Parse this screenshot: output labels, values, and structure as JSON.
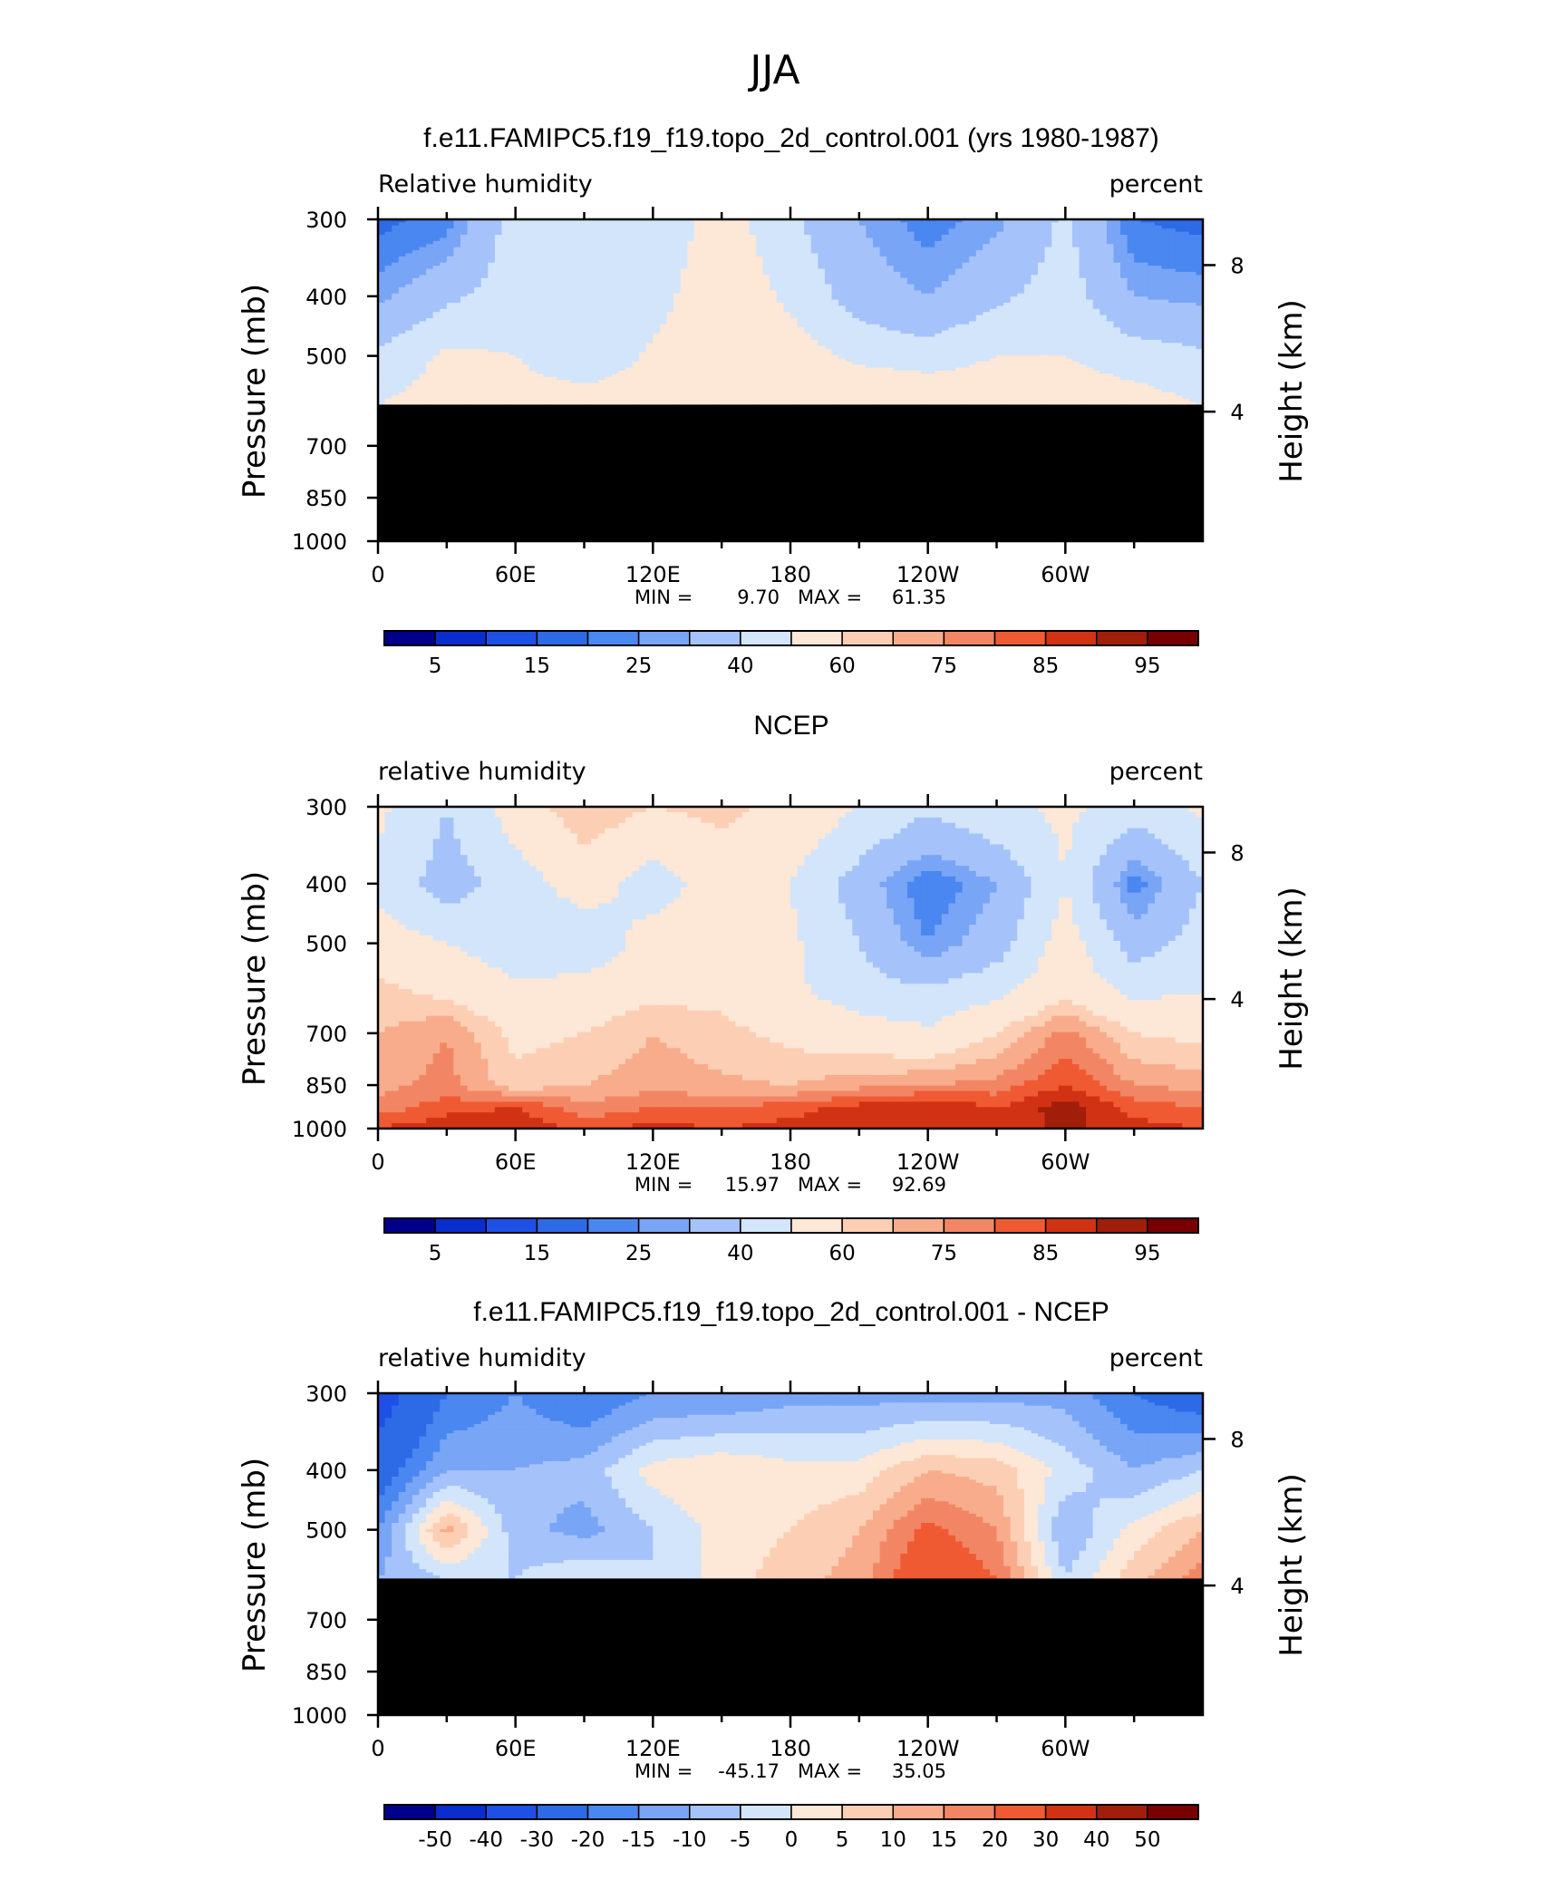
{
  "figure": {
    "supertitle": "JJA"
  },
  "colors": {
    "rh_palette": [
      "#00008b",
      "#0a2dcd",
      "#1e50e6",
      "#2d6be6",
      "#4b87f0",
      "#78a5f5",
      "#a5c3fa",
      "#d2e5fa",
      "#fde7d6",
      "#fccfb4",
      "#f8ac8c",
      "#f28664",
      "#f05a32",
      "#d23214",
      "#a01e0a",
      "#780000"
    ],
    "diff_palette": [
      "#00008b",
      "#0a2dcd",
      "#1e50e6",
      "#2d6be6",
      "#4b87f0",
      "#78a5f5",
      "#a5c3fa",
      "#d2e5fa",
      "#fde7d6",
      "#fccfb4",
      "#f8ac8c",
      "#f28664",
      "#f05a32",
      "#d23214",
      "#a01e0a",
      "#780000"
    ],
    "below_ground": "#000000"
  },
  "chart_data": [
    {
      "type": "heatmap",
      "title": "f.e11.FAMIPC5.f19_f19.topo_2d_control.001 (yrs 1980-1987)",
      "left_label": "Relative humidity",
      "right_label": "percent",
      "ylabel": "Pressure (mb)",
      "ylabel_right": "Height (km)",
      "x_ticks": [
        "0",
        "60E",
        "120E",
        "180",
        "120W",
        "60W"
      ],
      "y_ticks": [
        "300",
        "400",
        "500",
        "700",
        "850",
        "1000"
      ],
      "y_right_ticks": [
        "8",
        "4"
      ],
      "masked_below_mb": 600,
      "min_label": "MIN =",
      "min": "9.70",
      "max_label": "MAX =",
      "max": "61.35",
      "colorbar_labels": [
        "5",
        "15",
        "25",
        "40",
        "60",
        "75",
        "85",
        "95"
      ],
      "levels": [
        5,
        10,
        15,
        20,
        25,
        30,
        40,
        50,
        60,
        65,
        70,
        75,
        80,
        85,
        90,
        95
      ],
      "lon": [
        0,
        30,
        60,
        90,
        120,
        150,
        180,
        210,
        240,
        270,
        300,
        330,
        360
      ],
      "pressure": [
        300,
        400,
        500,
        600
      ],
      "values": [
        [
          18,
          22,
          45,
          40,
          42,
          55,
          42,
          30,
          22,
          28,
          42,
          20,
          18
        ],
        [
          28,
          38,
          45,
          42,
          46,
          58,
          48,
          35,
          30,
          38,
          45,
          30,
          28
        ],
        [
          42,
          52,
          50,
          40,
          52,
          58,
          55,
          48,
          45,
          50,
          50,
          45,
          42
        ],
        [
          50,
          55,
          57,
          58,
          58,
          60,
          60,
          60,
          60,
          58,
          57,
          55,
          50
        ]
      ]
    },
    {
      "type": "heatmap",
      "title": "NCEP",
      "left_label": "relative humidity",
      "right_label": "percent",
      "ylabel": "Pressure (mb)",
      "ylabel_right": "Height (km)",
      "x_ticks": [
        "0",
        "60E",
        "120E",
        "180",
        "120W",
        "60W"
      ],
      "y_ticks": [
        "300",
        "400",
        "500",
        "700",
        "850",
        "1000"
      ],
      "y_right_ticks": [
        "8",
        "4"
      ],
      "masked_below_mb": null,
      "min_label": "MIN =",
      "min": "15.97",
      "max_label": "MAX =",
      "max": "92.69",
      "colorbar_labels": [
        "5",
        "15",
        "25",
        "40",
        "60",
        "75",
        "85",
        "95"
      ],
      "levels": [
        5,
        10,
        15,
        20,
        25,
        30,
        40,
        50,
        60,
        65,
        70,
        75,
        80,
        85,
        90,
        95
      ],
      "lon": [
        0,
        30,
        60,
        90,
        120,
        150,
        180,
        210,
        240,
        270,
        300,
        330,
        360
      ],
      "pressure": [
        300,
        400,
        500,
        600,
        700,
        850,
        925,
        1000
      ],
      "values": [
        [
          52,
          40,
          55,
          65,
          60,
          62,
          58,
          50,
          42,
          48,
          52,
          45,
          52
        ],
        [
          48,
          35,
          45,
          55,
          45,
          55,
          50,
          35,
          20,
          30,
          50,
          22,
          40
        ],
        [
          55,
          50,
          45,
          42,
          55,
          55,
          52,
          40,
          25,
          35,
          55,
          35,
          45
        ],
        [
          62,
          58,
          52,
          55,
          58,
          58,
          52,
          45,
          42,
          48,
          58,
          48,
          50
        ],
        [
          65,
          70,
          58,
          60,
          65,
          62,
          58,
          55,
          52,
          60,
          72,
          60,
          58
        ],
        [
          68,
          72,
          62,
          65,
          68,
          66,
          65,
          68,
          70,
          72,
          80,
          70,
          68
        ],
        [
          72,
          78,
          80,
          72,
          75,
          75,
          78,
          82,
          85,
          80,
          88,
          78,
          75
        ],
        [
          80,
          84,
          85,
          78,
          82,
          80,
          82,
          85,
          84,
          82,
          86,
          82,
          80
        ]
      ]
    },
    {
      "type": "heatmap",
      "title": "f.e11.FAMIPC5.f19_f19.topo_2d_control.001 - NCEP",
      "left_label": "relative humidity",
      "right_label": "percent",
      "ylabel": "Pressure (mb)",
      "ylabel_right": "Height (km)",
      "x_ticks": [
        "0",
        "60E",
        "120E",
        "180",
        "120W",
        "60W"
      ],
      "y_ticks": [
        "300",
        "400",
        "500",
        "700",
        "850",
        "1000"
      ],
      "y_right_ticks": [
        "8",
        "4"
      ],
      "masked_below_mb": 600,
      "min_label": "MIN =",
      "min": "-45.17",
      "max_label": "MAX =",
      "max": "35.05",
      "colorbar_labels": [
        "-50",
        "-40",
        "-30",
        "-20",
        "-15",
        "-10",
        "-5",
        "0",
        "5",
        "10",
        "15",
        "20",
        "30",
        "40",
        "50"
      ],
      "levels": [
        -50,
        -40,
        -30,
        -20,
        -15,
        -10,
        -5,
        0,
        5,
        10,
        15,
        20,
        30,
        40,
        50
      ],
      "lon": [
        0,
        30,
        60,
        90,
        120,
        150,
        180,
        210,
        240,
        270,
        300,
        330,
        360
      ],
      "pressure": [
        300,
        400,
        500,
        600
      ],
      "values": [
        [
          -35,
          -20,
          -15,
          -20,
          -15,
          -15,
          -12,
          -12,
          -12,
          -12,
          -12,
          -20,
          -25
        ],
        [
          -25,
          -10,
          -10,
          -8,
          2,
          5,
          2,
          2,
          10,
          8,
          -2,
          -10,
          -5
        ],
        [
          -15,
          12,
          -8,
          -12,
          -5,
          2,
          5,
          10,
          22,
          15,
          -10,
          2,
          10
        ],
        [
          -10,
          -5,
          -5,
          0,
          -5,
          2,
          8,
          12,
          28,
          20,
          -5,
          8,
          18
        ]
      ]
    }
  ]
}
